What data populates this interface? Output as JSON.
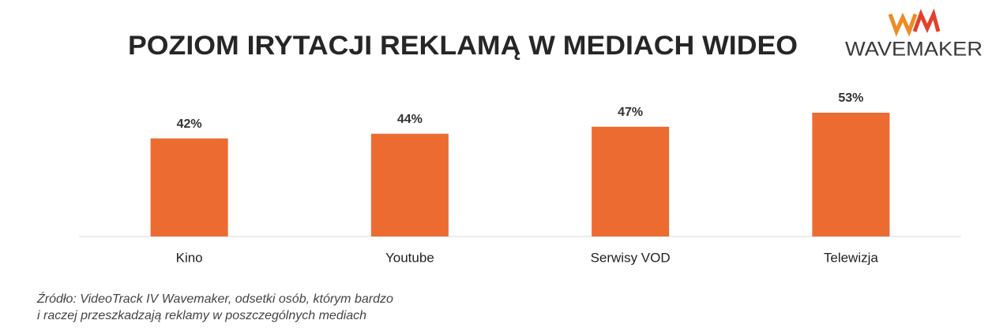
{
  "chart_data": {
    "type": "bar",
    "title": "POZIOM IRYTACJI REKLAMĄ W MEDIACH WIDEO",
    "categories": [
      "Kino",
      "Youtube",
      "Serwisy VOD",
      "Telewizja"
    ],
    "values": [
      42,
      44,
      47,
      53
    ],
    "value_labels": [
      "42%",
      "44%",
      "47%",
      "53%"
    ],
    "color": "#ec6b31",
    "source": [
      "Źródło: VideoTrack IV Wavemaker, odsetki osób, którym bardzo",
      "i raczej przeszkadzają reklamy w poszczególnych mediach"
    ],
    "logo": "WAVEMAKER"
  }
}
